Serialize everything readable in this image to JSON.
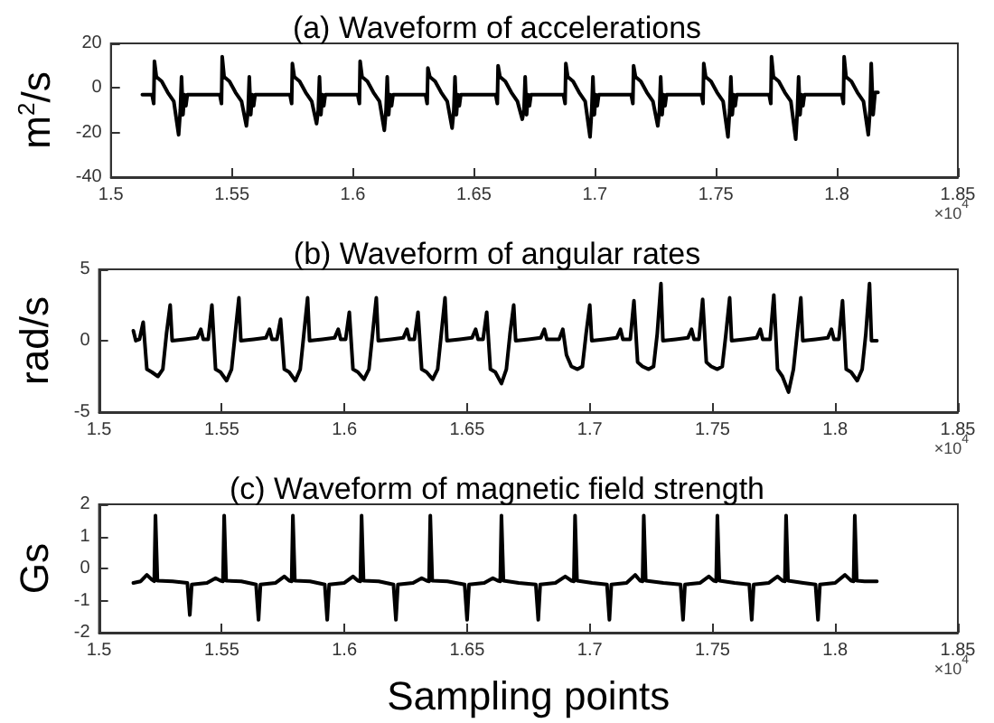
{
  "chart_data": [
    {
      "type": "line",
      "title": "(a) Waveform of accelerations",
      "ylabel": "m$^{2}$/s",
      "annotations": [
        "×10$^{4}$"
      ],
      "line_style": "solid",
      "xlim": [
        1.5,
        1.85
      ],
      "xticks": [
        1.5,
        1.55,
        1.6,
        1.65,
        1.7,
        1.75,
        1.8,
        1.85
      ],
      "ylim": [
        -40,
        20
      ],
      "yticks": [
        -40,
        -20,
        0,
        20
      ],
      "series": [
        {
          "color": "#000000",
          "x": [
            1.513,
            1.516,
            1.517,
            1.5177,
            1.518,
            1.5188,
            1.521,
            1.5235,
            1.526,
            1.528,
            1.5287,
            1.5292,
            1.5298,
            1.5304,
            1.531,
            1.5316,
            1.538,
            1.545,
            1.5457,
            1.546,
            1.5468,
            1.549,
            1.5515,
            1.554,
            1.556,
            1.5567,
            1.5572,
            1.5578,
            1.5584,
            1.559,
            1.5596,
            1.566,
            1.574,
            1.5747,
            1.575,
            1.5758,
            1.578,
            1.5805,
            1.583,
            1.585,
            1.5857,
            1.5862,
            1.5868,
            1.5874,
            1.588,
            1.5886,
            1.595,
            1.602,
            1.6027,
            1.603,
            1.6038,
            1.606,
            1.6085,
            1.611,
            1.613,
            1.6137,
            1.6142,
            1.6148,
            1.6154,
            1.616,
            1.6166,
            1.623,
            1.63,
            1.6307,
            1.631,
            1.6318,
            1.634,
            1.6365,
            1.639,
            1.641,
            1.6417,
            1.6422,
            1.6428,
            1.6434,
            1.644,
            1.6446,
            1.651,
            1.659,
            1.6597,
            1.66,
            1.6608,
            1.663,
            1.6655,
            1.668,
            1.67,
            1.6707,
            1.6712,
            1.6718,
            1.6724,
            1.673,
            1.6736,
            1.68,
            1.687,
            1.6877,
            1.688,
            1.6888,
            1.691,
            1.6935,
            1.696,
            1.698,
            1.6987,
            1.6992,
            1.6998,
            1.7004,
            1.701,
            1.7016,
            1.708,
            1.715,
            1.7157,
            1.716,
            1.7168,
            1.719,
            1.7215,
            1.724,
            1.726,
            1.7267,
            1.7272,
            1.7278,
            1.7284,
            1.729,
            1.7296,
            1.736,
            1.744,
            1.7447,
            1.745,
            1.7458,
            1.748,
            1.7505,
            1.753,
            1.755,
            1.7557,
            1.7562,
            1.7568,
            1.7574,
            1.758,
            1.7586,
            1.765,
            1.772,
            1.7727,
            1.773,
            1.7738,
            1.776,
            1.7785,
            1.781,
            1.783,
            1.7837,
            1.7842,
            1.7848,
            1.7854,
            1.786,
            1.7866,
            1.793,
            1.802,
            1.8027,
            1.803,
            1.8038,
            1.806,
            1.8085,
            1.811,
            1.813,
            1.8137,
            1.8142,
            1.815,
            1.8158,
            1.817
          ],
          "values": [
            -3,
            -3,
            -3,
            -7,
            12,
            5,
            3,
            -2,
            -6,
            -21,
            -10,
            5,
            -12,
            -3,
            -8,
            -3,
            -3,
            -3,
            -7,
            14,
            5,
            3,
            -2,
            -6,
            -17,
            -10,
            5,
            -12,
            -3,
            -8,
            -3,
            -3,
            -3,
            -7,
            11,
            5,
            3,
            -2,
            -6,
            -16,
            -10,
            5,
            -12,
            -3,
            -8,
            -3,
            -3,
            -3,
            -7,
            12,
            5,
            3,
            -2,
            -6,
            -19,
            -10,
            5,
            -12,
            -3,
            -8,
            -3,
            -3,
            -3,
            -7,
            9,
            5,
            3,
            -2,
            -6,
            -18,
            -10,
            5,
            -12,
            -3,
            -8,
            -3,
            -3,
            -3,
            -7,
            10,
            5,
            3,
            -2,
            -6,
            -14,
            -10,
            5,
            -12,
            -3,
            -8,
            -3,
            -3,
            -3,
            -7,
            11,
            5,
            3,
            -2,
            -6,
            -22,
            -10,
            5,
            -12,
            -3,
            -8,
            -3,
            -3,
            -3,
            -7,
            10,
            5,
            3,
            -2,
            -6,
            -17,
            -10,
            5,
            -12,
            -3,
            -8,
            -3,
            -3,
            -3,
            -7,
            11,
            5,
            3,
            -2,
            -6,
            -22,
            -10,
            5,
            -12,
            -3,
            -8,
            -3,
            -3,
            -3,
            -7,
            14,
            5,
            3,
            -2,
            -6,
            -23,
            -10,
            5,
            -12,
            -3,
            -8,
            -3,
            -3,
            -3,
            -7,
            14,
            5,
            3,
            -2,
            -6,
            -21,
            -10,
            11,
            -12,
            -2,
            -2
          ]
        }
      ]
    },
    {
      "type": "line",
      "title": "(b) Waveform of angular rates",
      "ylabel": "rad/s",
      "annotations": [
        "×10$^{4}$"
      ],
      "line_style": "solid",
      "xlim": [
        1.5,
        1.85
      ],
      "xticks": [
        1.5,
        1.55,
        1.6,
        1.65,
        1.7,
        1.75,
        1.8,
        1.85
      ],
      "ylim": [
        -5,
        5
      ],
      "yticks": [
        -5,
        0,
        5
      ],
      "series": [
        {
          "color": "#000000",
          "x": [
            1.514,
            1.515,
            1.5165,
            1.518,
            1.5195,
            1.5215,
            1.524,
            1.526,
            1.5275,
            1.529,
            1.5298,
            1.535,
            1.54,
            1.5415,
            1.5425,
            1.5445,
            1.546,
            1.5475,
            1.5495,
            1.552,
            1.554,
            1.5555,
            1.557,
            1.5578,
            1.563,
            1.568,
            1.5695,
            1.5705,
            1.5725,
            1.574,
            1.5755,
            1.5775,
            1.58,
            1.582,
            1.5835,
            1.585,
            1.5858,
            1.591,
            1.596,
            1.5975,
            1.5985,
            1.6005,
            1.602,
            1.6035,
            1.6055,
            1.608,
            1.61,
            1.6115,
            1.613,
            1.6138,
            1.619,
            1.624,
            1.6255,
            1.6265,
            1.6285,
            1.63,
            1.6315,
            1.6335,
            1.636,
            1.638,
            1.6395,
            1.641,
            1.6418,
            1.647,
            1.652,
            1.6535,
            1.6545,
            1.6565,
            1.658,
            1.6595,
            1.6615,
            1.664,
            1.666,
            1.6675,
            1.669,
            1.6698,
            1.675,
            1.68,
            1.6815,
            1.6825,
            1.6875,
            1.689,
            1.6905,
            1.6925,
            1.695,
            1.697,
            1.6985,
            1.7,
            1.7008,
            1.706,
            1.711,
            1.7125,
            1.7135,
            1.7165,
            1.718,
            1.7195,
            1.7215,
            1.724,
            1.726,
            1.7275,
            1.729,
            1.7298,
            1.735,
            1.74,
            1.7415,
            1.7425,
            1.7445,
            1.746,
            1.7475,
            1.7495,
            1.752,
            1.754,
            1.7555,
            1.757,
            1.7578,
            1.763,
            1.768,
            1.7695,
            1.7705,
            1.7735,
            1.775,
            1.7765,
            1.7785,
            1.781,
            1.783,
            1.7845,
            1.786,
            1.7868,
            1.792,
            1.797,
            1.7985,
            1.7995,
            1.8015,
            1.803,
            1.8045,
            1.8065,
            1.809,
            1.811,
            1.8125,
            1.814,
            1.8148,
            1.817
          ],
          "values": [
            0.7,
            0,
            0.1,
            1.3,
            -2,
            -2.2,
            -2.5,
            -2,
            0.5,
            2.5,
            0,
            0.1,
            0.2,
            0.8,
            0.1,
            0.1,
            2.5,
            -2,
            -2.2,
            -2.8,
            -2,
            0.5,
            3,
            0,
            0.1,
            0.2,
            0.8,
            0.1,
            0.1,
            1.5,
            -2,
            -2.2,
            -2.8,
            -2,
            0.5,
            3,
            0,
            0.1,
            0.2,
            0.8,
            0.1,
            0.1,
            2,
            -2,
            -2.2,
            -2.7,
            -2,
            0.5,
            3,
            0,
            0.1,
            0.2,
            0.8,
            0.1,
            0.1,
            2,
            -2,
            -2.2,
            -2.7,
            -2,
            0.5,
            3,
            0,
            0.1,
            0.2,
            0.8,
            0.1,
            0.1,
            2,
            -2,
            -2.2,
            -3,
            -2,
            0.5,
            2.5,
            0,
            0.1,
            0.2,
            0.8,
            0.1,
            0.1,
            0.8,
            -1,
            -1.8,
            -2,
            -1.8,
            0.5,
            2.5,
            0,
            0.1,
            0.2,
            0.8,
            0.1,
            0.1,
            2.8,
            -1.5,
            -1.8,
            -2,
            -1.8,
            0.5,
            4,
            0,
            0.1,
            0.2,
            0.8,
            0.1,
            0.1,
            2.9,
            -1.5,
            -1.8,
            -2,
            -1.8,
            0.5,
            3,
            0,
            0.1,
            0.2,
            0.8,
            0.1,
            0.1,
            3.2,
            -2,
            -2.5,
            -3.6,
            -2,
            0.5,
            3,
            0,
            0.1,
            0.2,
            0.8,
            0.1,
            0.1,
            2.8,
            -2,
            -2.2,
            -2.8,
            -2,
            0.5,
            4,
            0,
            0
          ]
        }
      ]
    },
    {
      "type": "line",
      "title": "(c) Waveform of magnetic field strength",
      "ylabel": "Gs",
      "xlabel": "Sampling points",
      "annotations": [
        "×10$^{4}$"
      ],
      "line_style": "solid",
      "xlim": [
        1.5,
        1.85
      ],
      "xticks": [
        1.5,
        1.55,
        1.6,
        1.65,
        1.7,
        1.75,
        1.8,
        1.85
      ],
      "ylim": [
        -2,
        2
      ],
      "yticks": [
        -2,
        -1,
        0,
        1,
        2
      ],
      "series": [
        {
          "color": "#000000",
          "x": [
            1.514,
            1.517,
            1.5195,
            1.5215,
            1.5225,
            1.523,
            1.5238,
            1.53,
            1.536,
            1.537,
            1.5378,
            1.544,
            1.5475,
            1.5495,
            1.5505,
            1.551,
            1.5518,
            1.558,
            1.564,
            1.565,
            1.5658,
            1.572,
            1.5755,
            1.5775,
            1.5785,
            1.579,
            1.5798,
            1.586,
            1.592,
            1.593,
            1.5938,
            1.6,
            1.6035,
            1.6055,
            1.6065,
            1.607,
            1.6078,
            1.614,
            1.62,
            1.621,
            1.6218,
            1.628,
            1.6315,
            1.6335,
            1.6345,
            1.635,
            1.6358,
            1.642,
            1.649,
            1.65,
            1.6508,
            1.657,
            1.6605,
            1.6625,
            1.6635,
            1.664,
            1.6648,
            1.671,
            1.678,
            1.679,
            1.6798,
            1.686,
            1.69,
            1.6925,
            1.6935,
            1.694,
            1.6948,
            1.701,
            1.707,
            1.708,
            1.7088,
            1.715,
            1.7185,
            1.7205,
            1.7215,
            1.722,
            1.7228,
            1.73,
            1.737,
            1.738,
            1.7388,
            1.745,
            1.7485,
            1.7505,
            1.7515,
            1.752,
            1.7528,
            1.759,
            1.765,
            1.766,
            1.7668,
            1.773,
            1.7765,
            1.7785,
            1.7795,
            1.78,
            1.7808,
            1.787,
            1.792,
            1.793,
            1.7938,
            1.8,
            1.804,
            1.8065,
            1.8075,
            1.808,
            1.8088,
            1.812,
            1.817
          ],
          "values": [
            -0.45,
            -0.4,
            -0.2,
            -0.35,
            -0.4,
            1.65,
            -0.38,
            -0.4,
            -0.45,
            -1.45,
            -0.5,
            -0.45,
            -0.3,
            -0.38,
            -0.4,
            1.65,
            -0.38,
            -0.4,
            -0.5,
            -1.6,
            -0.5,
            -0.45,
            -0.25,
            -0.38,
            -0.4,
            1.65,
            -0.38,
            -0.4,
            -0.5,
            -1.6,
            -0.5,
            -0.45,
            -0.25,
            -0.38,
            -0.4,
            1.65,
            -0.38,
            -0.4,
            -0.5,
            -1.6,
            -0.5,
            -0.45,
            -0.3,
            -0.38,
            -0.4,
            1.65,
            -0.38,
            -0.4,
            -0.5,
            -1.6,
            -0.5,
            -0.45,
            -0.3,
            -0.38,
            -0.4,
            1.65,
            -0.38,
            -0.45,
            -0.5,
            -1.6,
            -0.5,
            -0.45,
            -0.25,
            -0.38,
            -0.4,
            1.65,
            -0.38,
            -0.45,
            -0.5,
            -1.6,
            -0.5,
            -0.45,
            -0.2,
            -0.38,
            -0.4,
            1.65,
            -0.38,
            -0.45,
            -0.5,
            -1.6,
            -0.5,
            -0.45,
            -0.25,
            -0.38,
            -0.4,
            1.65,
            -0.38,
            -0.45,
            -0.5,
            -1.6,
            -0.5,
            -0.45,
            -0.25,
            -0.38,
            -0.4,
            1.65,
            -0.38,
            -0.45,
            -0.5,
            -1.6,
            -0.5,
            -0.45,
            -0.2,
            -0.38,
            -0.4,
            1.65,
            -0.38,
            -0.4,
            -0.4
          ]
        }
      ]
    }
  ]
}
